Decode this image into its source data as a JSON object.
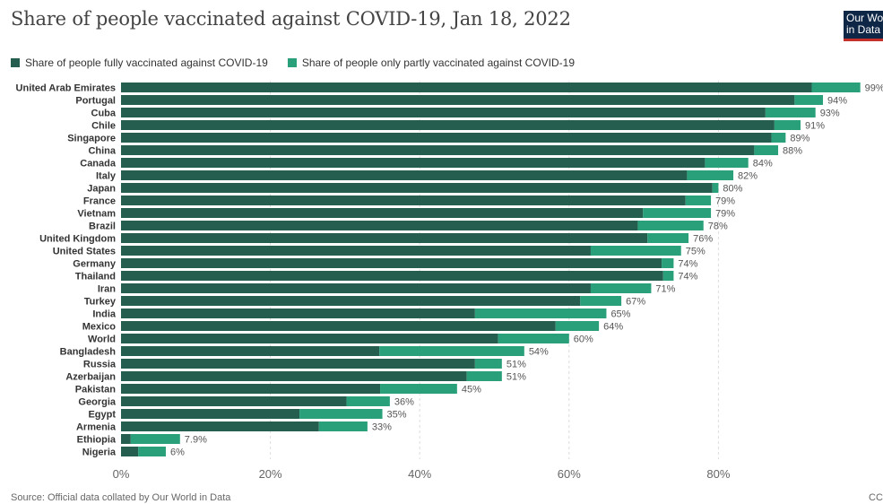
{
  "logo": {
    "line1": "Our World",
    "line2": "in Data"
  },
  "footer": {
    "source": "Source: Official data collated by Our World in Data",
    "license": "CC BY"
  },
  "colors": {
    "full": "#255e4f",
    "partial": "#2aa07a",
    "grid": "#dddddd"
  },
  "chart_data": {
    "type": "bar",
    "orientation": "horizontal",
    "stacked": true,
    "title": "Share of people vaccinated against COVID-19, Jan 18, 2022",
    "xlabel": "",
    "ylabel": "",
    "xlim": [
      0,
      100
    ],
    "xticks": [
      0,
      20,
      40,
      60,
      80
    ],
    "xtick_labels": [
      "0%",
      "20%",
      "40%",
      "60%",
      "80%"
    ],
    "legend_position": "top-left",
    "series": [
      {
        "name": "Share of people fully vaccinated against COVID-19",
        "color": "#255e4f"
      },
      {
        "name": "Share of people only partly vaccinated against COVID-19",
        "color": "#2aa07a"
      }
    ],
    "categories": [
      "United Arab Emirates",
      "Portugal",
      "Cuba",
      "Chile",
      "Singapore",
      "China",
      "Canada",
      "Italy",
      "Japan",
      "France",
      "Vietnam",
      "Brazil",
      "United Kingdom",
      "United States",
      "Germany",
      "Thailand",
      "Iran",
      "Turkey",
      "India",
      "Mexico",
      "World",
      "Bangladesh",
      "Russia",
      "Azerbaijan",
      "Pakistan",
      "Georgia",
      "Egypt",
      "Armenia",
      "Ethiopia",
      "Nigeria"
    ],
    "full": [
      92.5,
      90.2,
      86.3,
      87.5,
      87.1,
      84.8,
      78.2,
      75.8,
      79.2,
      75.6,
      69.9,
      69.2,
      70.5,
      62.9,
      72.4,
      72.6,
      62.9,
      61.5,
      47.4,
      58.2,
      50.5,
      34.6,
      47.4,
      46.3,
      34.7,
      30.2,
      23.9,
      26.5,
      1.3,
      2.3
    ],
    "partial": [
      6.5,
      3.8,
      6.7,
      3.5,
      1.9,
      3.2,
      5.8,
      6.2,
      0.8,
      3.4,
      9.1,
      8.8,
      5.5,
      12.1,
      1.6,
      1.4,
      8.1,
      5.5,
      17.6,
      5.8,
      9.5,
      19.4,
      3.6,
      4.7,
      10.3,
      5.8,
      11.1,
      6.5,
      6.6,
      3.7
    ],
    "totals_label": [
      "99%",
      "94%",
      "93%",
      "91%",
      "89%",
      "88%",
      "84%",
      "82%",
      "80%",
      "79%",
      "79%",
      "78%",
      "76%",
      "75%",
      "74%",
      "74%",
      "71%",
      "67%",
      "65%",
      "64%",
      "60%",
      "54%",
      "51%",
      "51%",
      "45%",
      "36%",
      "35%",
      "33%",
      "7.9%",
      "6%"
    ]
  }
}
